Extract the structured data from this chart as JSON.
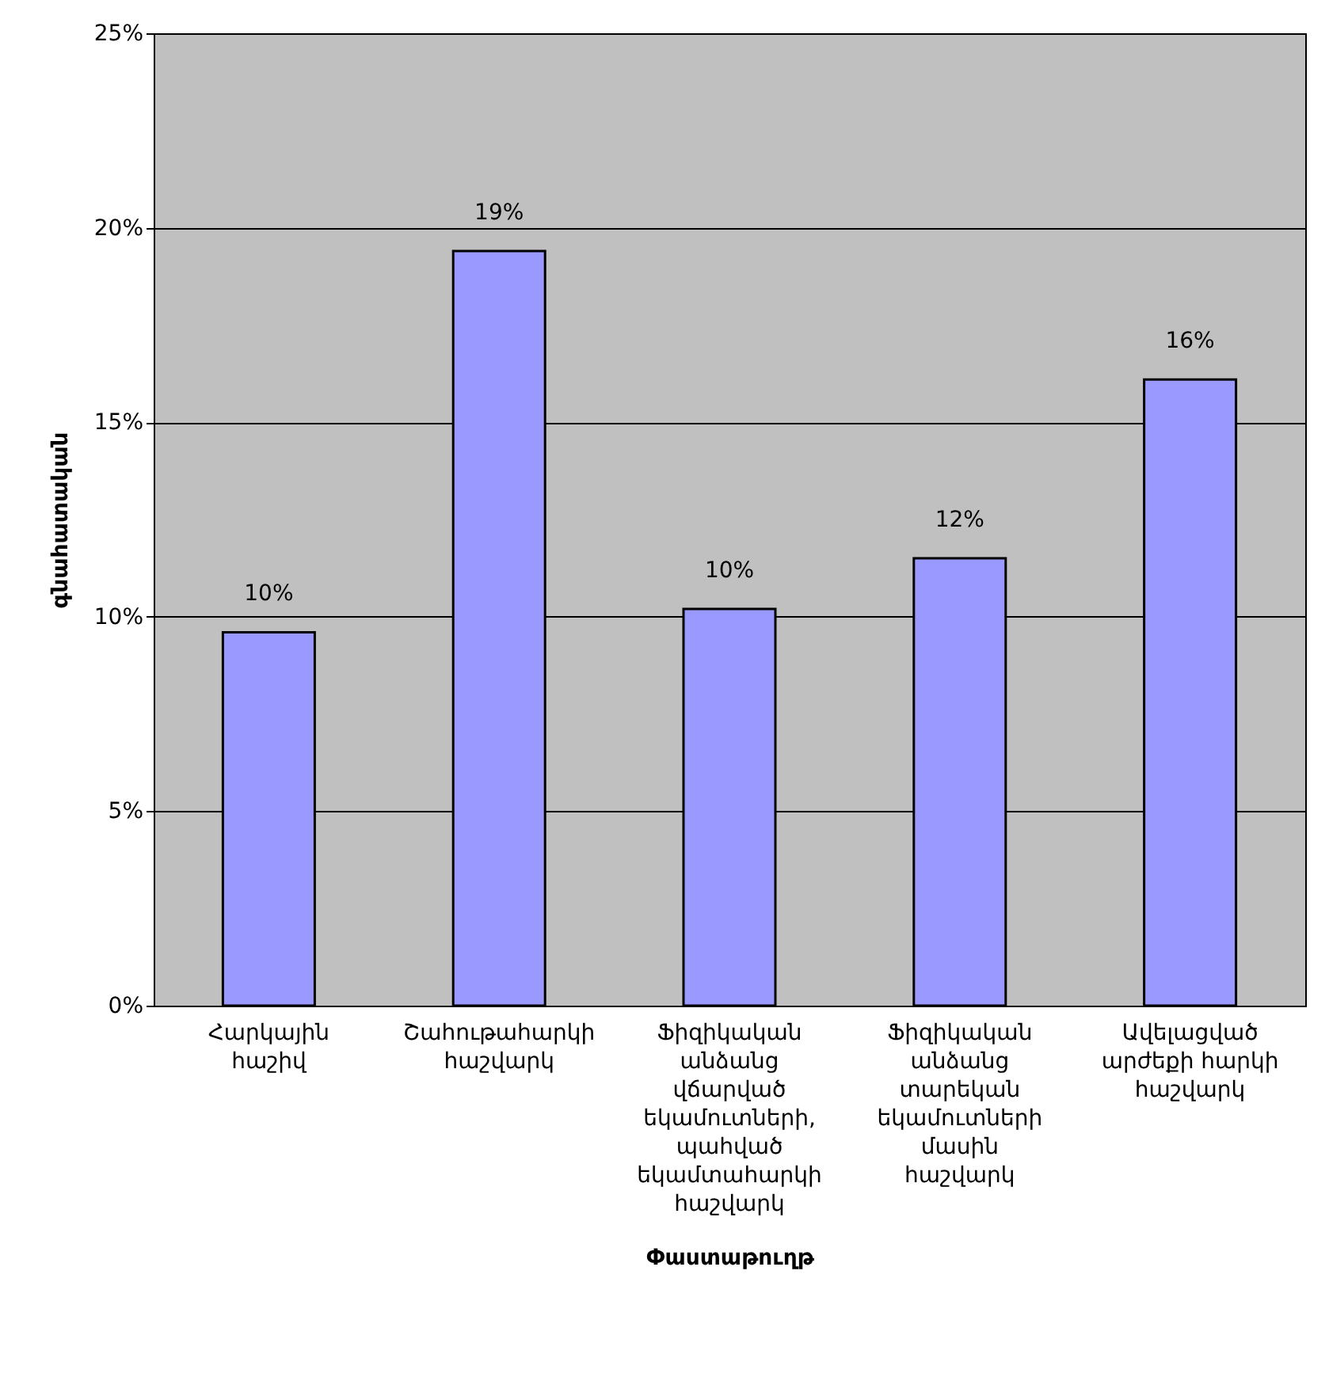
{
  "chart_data": {
    "type": "bar",
    "xlabel": "Փաստաթուղթ",
    "ylabel": "գնահատական",
    "categories": [
      "Հարկային հաշիվ",
      "Շահութահարկի հաշվարկ",
      "Ֆիզիկական անձանց վճարված եկամուտների, պահված եկամտահարկի հաշվարկ",
      "Ֆիզիկական անձանց տարեկան եկամուտների մասին հաշվարկ",
      "Ավելացված արժեքի հարկի հաշվարկ"
    ],
    "values": [
      9.6,
      19.4,
      10.2,
      11.5,
      16.1
    ],
    "value_labels": [
      "10%",
      "19%",
      "10%",
      "12%",
      "16%"
    ],
    "color": "#9999ff",
    "ylim": [
      0,
      25
    ],
    "yticks": [
      {
        "value": 0,
        "label": "0%"
      },
      {
        "value": 5,
        "label": "5%"
      },
      {
        "value": 10,
        "label": "10%"
      },
      {
        "value": 15,
        "label": "15%"
      },
      {
        "value": 20,
        "label": "20%"
      },
      {
        "value": 25,
        "label": "25%"
      }
    ],
    "grid": "y"
  }
}
